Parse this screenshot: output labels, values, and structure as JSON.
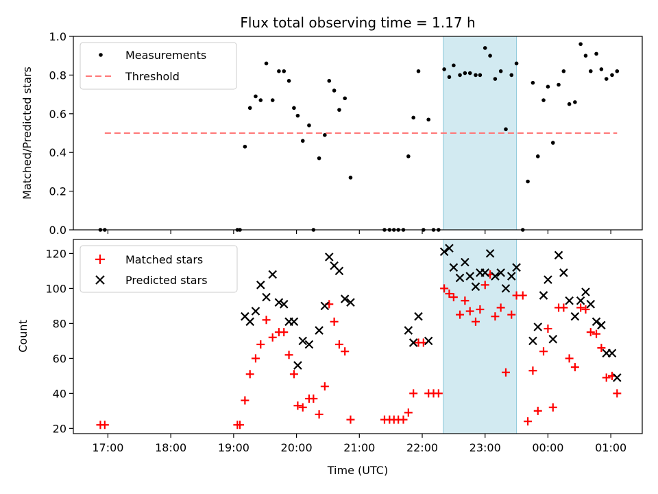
{
  "chart_data": [
    {
      "type": "scatter",
      "title": "Flux total observing time = 1.17 h",
      "xlabel": "",
      "ylabel": "Matched/Predicted stars",
      "ylim": [
        0,
        1.0
      ],
      "xlim_hours": [
        16.45,
        25.5
      ],
      "y_ticks": [
        "0.0",
        "0.2",
        "0.4",
        "0.6",
        "0.8",
        "1.0"
      ],
      "x_ticks": [
        "17:00",
        "18:00",
        "19:00",
        "20:00",
        "21:00",
        "22:00",
        "23:00",
        "00:00",
        "01:00"
      ],
      "highlight": {
        "x_start": "22:20",
        "x_end": "23:30",
        "color": "#add8e6"
      },
      "legend": {
        "position": "upper-left",
        "entries": [
          "Measurements",
          "Threshold"
        ]
      },
      "threshold": {
        "name": "Threshold",
        "y": 0.5,
        "x_start": 16.95,
        "x_end": 25.1,
        "color": "#ff7777"
      },
      "series": [
        {
          "name": "Measurements",
          "color": "#000000",
          "points": [
            [
              16.88,
              0.0
            ],
            [
              16.95,
              0.0
            ],
            [
              19.06,
              0.0
            ],
            [
              19.1,
              0.0
            ],
            [
              19.18,
              0.43
            ],
            [
              19.26,
              0.63
            ],
            [
              19.35,
              0.69
            ],
            [
              19.43,
              0.67
            ],
            [
              19.52,
              0.86
            ],
            [
              19.62,
              0.67
            ],
            [
              19.72,
              0.82
            ],
            [
              19.8,
              0.82
            ],
            [
              19.88,
              0.77
            ],
            [
              19.96,
              0.63
            ],
            [
              20.02,
              0.59
            ],
            [
              20.1,
              0.46
            ],
            [
              20.2,
              0.54
            ],
            [
              20.27,
              0.0
            ],
            [
              20.36,
              0.37
            ],
            [
              20.45,
              0.49
            ],
            [
              20.52,
              0.77
            ],
            [
              20.6,
              0.72
            ],
            [
              20.68,
              0.62
            ],
            [
              20.77,
              0.68
            ],
            [
              20.86,
              0.27
            ],
            [
              21.4,
              0.0
            ],
            [
              21.48,
              0.0
            ],
            [
              21.55,
              0.0
            ],
            [
              21.62,
              0.0
            ],
            [
              21.7,
              0.0
            ],
            [
              21.78,
              0.38
            ],
            [
              21.86,
              0.58
            ],
            [
              21.94,
              0.82
            ],
            [
              22.02,
              0.0
            ],
            [
              22.1,
              0.57
            ],
            [
              22.18,
              0.0
            ],
            [
              22.26,
              0.0
            ],
            [
              22.35,
              0.83
            ],
            [
              22.43,
              0.79
            ],
            [
              22.5,
              0.85
            ],
            [
              22.6,
              0.8
            ],
            [
              22.68,
              0.81
            ],
            [
              22.76,
              0.81
            ],
            [
              22.85,
              0.8
            ],
            [
              22.92,
              0.8
            ],
            [
              23.0,
              0.94
            ],
            [
              23.08,
              0.9
            ],
            [
              23.16,
              0.78
            ],
            [
              23.25,
              0.82
            ],
            [
              23.33,
              0.52
            ],
            [
              23.42,
              0.8
            ],
            [
              23.5,
              0.86
            ],
            [
              23.6,
              0.0
            ],
            [
              23.68,
              0.25
            ],
            [
              23.76,
              0.76
            ],
            [
              23.84,
              0.38
            ],
            [
              23.93,
              0.67
            ],
            [
              24.0,
              0.74
            ],
            [
              24.08,
              0.45
            ],
            [
              24.17,
              0.75
            ],
            [
              24.25,
              0.82
            ],
            [
              24.34,
              0.65
            ],
            [
              24.43,
              0.66
            ],
            [
              24.52,
              0.96
            ],
            [
              24.6,
              0.9
            ],
            [
              24.68,
              0.82
            ],
            [
              24.77,
              0.91
            ],
            [
              24.85,
              0.83
            ],
            [
              24.93,
              0.78
            ],
            [
              25.02,
              0.8
            ],
            [
              25.1,
              0.82
            ]
          ]
        }
      ]
    },
    {
      "type": "scatter",
      "title": "",
      "xlabel": "Time (UTC)",
      "ylabel": "Count",
      "ylim": [
        17,
        128
      ],
      "xlim_hours": [
        16.45,
        25.5
      ],
      "y_ticks": [
        "20",
        "40",
        "60",
        "80",
        "100",
        "120"
      ],
      "x_ticks": [
        "17:00",
        "18:00",
        "19:00",
        "20:00",
        "21:00",
        "22:00",
        "23:00",
        "00:00",
        "01:00"
      ],
      "highlight": {
        "x_start": "22:20",
        "x_end": "23:30",
        "color": "#add8e6"
      },
      "legend": {
        "position": "upper-left",
        "entries": [
          "Matched stars",
          "Predicted stars"
        ]
      },
      "series": [
        {
          "name": "Matched stars",
          "color": "#ff0000",
          "marker": "plus",
          "points": [
            [
              16.88,
              22
            ],
            [
              16.95,
              22
            ],
            [
              19.06,
              22
            ],
            [
              19.1,
              22
            ],
            [
              19.18,
              36
            ],
            [
              19.26,
              51
            ],
            [
              19.35,
              60
            ],
            [
              19.43,
              68
            ],
            [
              19.52,
              82
            ],
            [
              19.62,
              72
            ],
            [
              19.72,
              75
            ],
            [
              19.8,
              75
            ],
            [
              19.88,
              62
            ],
            [
              19.96,
              51
            ],
            [
              20.02,
              33
            ],
            [
              20.1,
              32
            ],
            [
              20.2,
              37
            ],
            [
              20.27,
              37
            ],
            [
              20.36,
              28
            ],
            [
              20.45,
              44
            ],
            [
              20.52,
              91
            ],
            [
              20.6,
              81
            ],
            [
              20.68,
              68
            ],
            [
              20.77,
              64
            ],
            [
              20.86,
              25
            ],
            [
              21.4,
              25
            ],
            [
              21.48,
              25
            ],
            [
              21.55,
              25
            ],
            [
              21.62,
              25
            ],
            [
              21.7,
              25
            ],
            [
              21.78,
              29
            ],
            [
              21.86,
              40
            ],
            [
              21.94,
              69
            ],
            [
              22.02,
              69
            ],
            [
              22.1,
              40
            ],
            [
              22.18,
              40
            ],
            [
              22.26,
              40
            ],
            [
              22.35,
              100
            ],
            [
              22.43,
              97
            ],
            [
              22.5,
              95
            ],
            [
              22.6,
              85
            ],
            [
              22.68,
              93
            ],
            [
              22.76,
              87
            ],
            [
              22.85,
              81
            ],
            [
              22.92,
              88
            ],
            [
              23.0,
              102
            ],
            [
              23.08,
              108
            ],
            [
              23.16,
              84
            ],
            [
              23.25,
              89
            ],
            [
              23.33,
              52
            ],
            [
              23.42,
              85
            ],
            [
              23.5,
              96
            ],
            [
              23.6,
              96
            ],
            [
              23.68,
              24
            ],
            [
              23.76,
              53
            ],
            [
              23.84,
              30
            ],
            [
              23.93,
              64
            ],
            [
              24.0,
              77
            ],
            [
              24.08,
              32
            ],
            [
              24.17,
              89
            ],
            [
              24.25,
              89
            ],
            [
              24.34,
              60
            ],
            [
              24.43,
              55
            ],
            [
              24.52,
              89
            ],
            [
              24.6,
              88
            ],
            [
              24.68,
              75
            ],
            [
              24.77,
              74
            ],
            [
              24.85,
              66
            ],
            [
              24.93,
              49
            ],
            [
              25.02,
              50
            ],
            [
              25.1,
              40
            ]
          ]
        },
        {
          "name": "Predicted stars",
          "color": "#000000",
          "marker": "cross",
          "points": [
            [
              19.18,
              84
            ],
            [
              19.26,
              81
            ],
            [
              19.35,
              87
            ],
            [
              19.43,
              102
            ],
            [
              19.52,
              95
            ],
            [
              19.62,
              108
            ],
            [
              19.72,
              92
            ],
            [
              19.8,
              91
            ],
            [
              19.88,
              81
            ],
            [
              19.96,
              81
            ],
            [
              20.02,
              56
            ],
            [
              20.1,
              70
            ],
            [
              20.2,
              68
            ],
            [
              20.36,
              76
            ],
            [
              20.45,
              90
            ],
            [
              20.52,
              118
            ],
            [
              20.6,
              113
            ],
            [
              20.68,
              110
            ],
            [
              20.77,
              94
            ],
            [
              20.86,
              92
            ],
            [
              21.78,
              76
            ],
            [
              21.86,
              69
            ],
            [
              21.94,
              84
            ],
            [
              22.1,
              70
            ],
            [
              22.35,
              121
            ],
            [
              22.43,
              123
            ],
            [
              22.5,
              112
            ],
            [
              22.6,
              106
            ],
            [
              22.68,
              115
            ],
            [
              22.76,
              107
            ],
            [
              22.85,
              101
            ],
            [
              22.92,
              109
            ],
            [
              23.0,
              109
            ],
            [
              23.08,
              120
            ],
            [
              23.16,
              107
            ],
            [
              23.25,
              109
            ],
            [
              23.33,
              100
            ],
            [
              23.42,
              107
            ],
            [
              23.5,
              112
            ],
            [
              23.76,
              70
            ],
            [
              23.84,
              78
            ],
            [
              23.93,
              96
            ],
            [
              24.0,
              105
            ],
            [
              24.08,
              71
            ],
            [
              24.17,
              119
            ],
            [
              24.25,
              109
            ],
            [
              24.34,
              93
            ],
            [
              24.43,
              84
            ],
            [
              24.52,
              93
            ],
            [
              24.6,
              98
            ],
            [
              24.68,
              91
            ],
            [
              24.77,
              81
            ],
            [
              24.85,
              79
            ],
            [
              24.93,
              63
            ],
            [
              25.02,
              63
            ],
            [
              25.1,
              49
            ]
          ]
        }
      ]
    }
  ]
}
